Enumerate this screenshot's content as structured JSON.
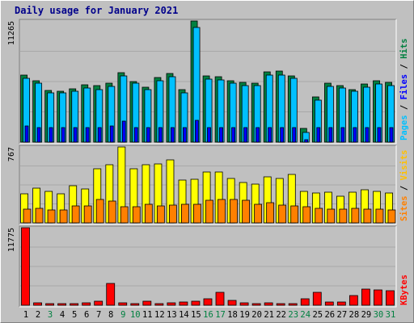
{
  "title": "Daily usage for January 2021",
  "chart_data": [
    {
      "type": "bar",
      "panel": "hits_files_pages",
      "scale_label": "11265",
      "ylim": [
        0,
        11265
      ],
      "categories": [
        "1",
        "2",
        "3",
        "4",
        "5",
        "6",
        "7",
        "8",
        "9",
        "10",
        "11",
        "12",
        "13",
        "14",
        "15",
        "16",
        "17",
        "18",
        "19",
        "20",
        "21",
        "22",
        "23",
        "24",
        "25",
        "26",
        "27",
        "28",
        "29",
        "30",
        "31"
      ],
      "right_label": {
        "pages": "Pages",
        "files": "Files",
        "hits": "Hits",
        "sep": " / "
      },
      "colors": {
        "hits": "#008040",
        "files": "#00c0ff",
        "pages": "#0000ff"
      },
      "series": [
        {
          "name": "Hits",
          "values": [
            6199,
            5727,
            4774,
            4712,
            4923,
            5322,
            5224,
            5480,
            6479,
            5664,
            5108,
            5974,
            6388,
            4852,
            11265,
            6124,
            6099,
            5727,
            5536,
            5480,
            6564,
            6635,
            6132,
            1242,
            4212,
            5460,
            5224,
            4874,
            5404,
            5727,
            5536
          ]
        },
        {
          "name": "Files",
          "values": [
            5899,
            5509,
            4617,
            4579,
            4696,
            4998,
            4848,
            5195,
            6125,
            5461,
            4848,
            5736,
            6062,
            4548,
            10655,
            5843,
            5789,
            5517,
            5291,
            5224,
            6261,
            6261,
            5901,
            879,
            3913,
            5175,
            4998,
            4694,
            5110,
            5437,
            5224
          ]
        },
        {
          "name": "Pages",
          "values": [
            1530,
            1379,
            1340,
            1321,
            1349,
            1350,
            1334,
            1490,
            1974,
            1327,
            1320,
            1356,
            1355,
            1346,
            2020,
            1354,
            1379,
            1358,
            1353,
            1350,
            1328,
            1338,
            1334,
            221,
            1350,
            1337,
            1330,
            1329,
            1340,
            1358,
            1380
          ]
        }
      ]
    },
    {
      "type": "bar",
      "panel": "visits_sites",
      "scale_label": "767",
      "ylim": [
        0,
        767
      ],
      "categories": [
        "1",
        "2",
        "3",
        "4",
        "5",
        "6",
        "7",
        "8",
        "9",
        "10",
        "11",
        "12",
        "13",
        "14",
        "15",
        "16",
        "17",
        "18",
        "19",
        "20",
        "21",
        "22",
        "23",
        "24",
        "25",
        "26",
        "27",
        "28",
        "29",
        "30",
        "31"
      ],
      "right_label": {
        "sites": "Sites",
        "visits": "Visits",
        "sep": " / "
      },
      "colors": {
        "visits": "#ffff00",
        "sites": "#ff8000"
      },
      "series": [
        {
          "name": "Visits",
          "values": [
            290,
            350,
            315,
            290,
            375,
            345,
            550,
            585,
            767,
            550,
            585,
            595,
            635,
            435,
            440,
            515,
            515,
            445,
            405,
            395,
            465,
            445,
            490,
            320,
            305,
            310,
            270,
            310,
            335,
            315,
            305
          ]
        },
        {
          "name": "Sites",
          "values": [
            140,
            150,
            130,
            130,
            175,
            175,
            240,
            220,
            165,
            165,
            190,
            175,
            180,
            190,
            190,
            225,
            240,
            240,
            225,
            190,
            200,
            180,
            175,
            165,
            150,
            140,
            140,
            150,
            135,
            140,
            130
          ]
        }
      ]
    },
    {
      "type": "bar",
      "panel": "kbytes",
      "scale_label": "11775",
      "ylim": [
        0,
        11775
      ],
      "categories": [
        "1",
        "2",
        "3",
        "4",
        "5",
        "6",
        "7",
        "8",
        "9",
        "10",
        "11",
        "12",
        "13",
        "14",
        "15",
        "16",
        "17",
        "18",
        "19",
        "20",
        "21",
        "22",
        "23",
        "24",
        "25",
        "26",
        "27",
        "28",
        "29",
        "30",
        "31"
      ],
      "right_label": {
        "kbytes": "KBytes"
      },
      "colors": {
        "kbytes": "#ff0000"
      },
      "series": [
        {
          "name": "KBytes",
          "values": [
            11775,
            393,
            196,
            196,
            196,
            311,
            590,
            3336,
            311,
            300,
            590,
            248,
            376,
            440,
            650,
            1000,
            1965,
            687,
            400,
            300,
            311,
            300,
            300,
            1000,
            1965,
            452,
            478,
            1470,
            2456,
            2385,
            2220
          ]
        }
      ]
    }
  ],
  "x_label_colors": [
    "#000000",
    "#000000",
    "#008040",
    "#000000",
    "#000000",
    "#000000",
    "#000000",
    "#000000",
    "#008040",
    "#008040",
    "#000000",
    "#000000",
    "#000000",
    "#000000",
    "#000000",
    "#008040",
    "#008040",
    "#000000",
    "#000000",
    "#000000",
    "#000000",
    "#000000",
    "#008040",
    "#008040",
    "#000000",
    "#000000",
    "#000000",
    "#000000",
    "#000000",
    "#008040",
    "#008040"
  ]
}
